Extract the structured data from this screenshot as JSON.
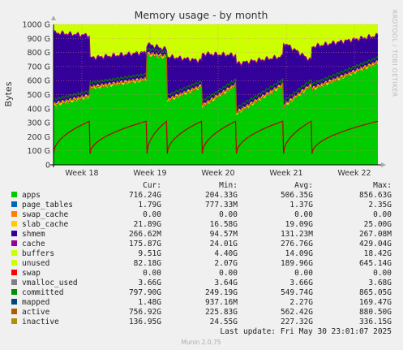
{
  "chart_data": {
    "type": "area",
    "title": "Memory usage - by month",
    "ylabel": "Bytes",
    "side_label": "RRDTOOL / TOBI OETIKER",
    "ylim": [
      0,
      1000
    ],
    "yticks": [
      "0",
      "100 G",
      "200 G",
      "300 G",
      "400 G",
      "500 G",
      "600 G",
      "700 G",
      "800 G",
      "900 G",
      "1000 G"
    ],
    "xticks": [
      "Week 18",
      "Week 19",
      "Week 20",
      "Week 21",
      "Week 22"
    ],
    "legend_headers": [
      "Cur:",
      "Min:",
      "Avg:",
      "Max:"
    ],
    "legend": [
      {
        "name": "apps",
        "color": "#00cc00",
        "cur": "716.24G",
        "min": "204.33G",
        "avg": "506.35G",
        "max": "856.63G"
      },
      {
        "name": "page_tables",
        "color": "#0066b3",
        "cur": "1.79G",
        "min": "777.33M",
        "avg": "1.37G",
        "max": "2.35G"
      },
      {
        "name": "swap_cache",
        "color": "#ff8000",
        "cur": "0.00",
        "min": "0.00",
        "avg": "0.00",
        "max": "0.00"
      },
      {
        "name": "slab_cache",
        "color": "#ffcc00",
        "cur": "21.89G",
        "min": "16.58G",
        "avg": "19.09G",
        "max": "25.00G"
      },
      {
        "name": "shmem",
        "color": "#330099",
        "cur": "266.62M",
        "min": "94.57M",
        "avg": "131.23M",
        "max": "267.08M"
      },
      {
        "name": "cache",
        "color": "#990099",
        "cur": "175.87G",
        "min": "24.01G",
        "avg": "276.76G",
        "max": "429.04G"
      },
      {
        "name": "buffers",
        "color": "#ccff00",
        "cur": "9.51G",
        "min": "4.40G",
        "avg": "14.09G",
        "max": "18.42G"
      },
      {
        "name": "unused",
        "color": "#ccff00",
        "cur": "82.18G",
        "min": "2.07G",
        "avg": "189.96G",
        "max": "645.14G"
      },
      {
        "name": "swap",
        "color": "#ff0000",
        "cur": "0.00",
        "min": "0.00",
        "avg": "0.00",
        "max": "0.00"
      },
      {
        "name": "vmalloc_used",
        "color": "#808080",
        "cur": "3.66G",
        "min": "3.64G",
        "avg": "3.66G",
        "max": "3.68G"
      },
      {
        "name": "committed",
        "color": "#008f00",
        "cur": "797.90G",
        "min": "249.19G",
        "avg": "549.74G",
        "max": "865.05G"
      },
      {
        "name": "mapped",
        "color": "#00487d",
        "cur": "1.48G",
        "min": "937.16M",
        "avg": "2.27G",
        "max": "169.47G"
      },
      {
        "name": "active",
        "color": "#b35a00",
        "cur": "756.92G",
        "min": "225.83G",
        "avg": "562.42G",
        "max": "880.50G"
      },
      {
        "name": "inactive",
        "color": "#b38f00",
        "cur": "136.95G",
        "min": "24.55G",
        "avg": "227.32G",
        "max": "336.15G"
      }
    ],
    "last_update": "Last update: Fri May 30 23:01:07 2025",
    "footer": "Munin 2.0.75",
    "series_colors": {
      "apps": "#00cc00",
      "slab_cache": "#ffcc00",
      "cache": "#330099",
      "cache_top": "#990099",
      "unused": "#ccff00",
      "committed_line": "#007a00",
      "active_line": "#b35a00",
      "inactive_line": "#b30000"
    }
  }
}
